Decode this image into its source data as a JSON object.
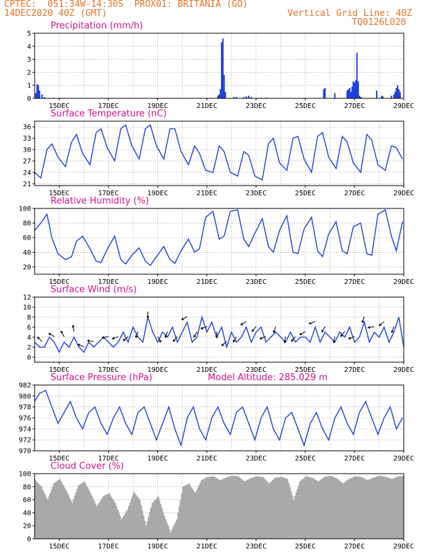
{
  "header": {
    "line1": "CPTEC:  051:34W-14:30S  PROX01: BRITANIA (GO)",
    "line2_left": "14DEC2020 40Z (GMT)",
    "line2_right": "Vertical Grid Line: 40Z",
    "line3_right": "TQ0126L028"
  },
  "colors": {
    "header": "#e8742a",
    "title": "#d4148c",
    "line": "#1f3fe0",
    "cloud": "#a9a9a9"
  },
  "chart_data": [
    {
      "type": "bar",
      "title": "Precipitation (mm/h)",
      "ylim": [
        0,
        5
      ],
      "yticks": [
        "0",
        "1",
        "2",
        "3",
        "4",
        "5"
      ],
      "xticks": [
        "15DEC",
        "17DEC",
        "19DEC",
        "21DEC",
        "23DEC",
        "25DEC",
        "27DEC",
        "29DEC"
      ],
      "x_day": [
        14.05,
        14.1,
        14.15,
        14.2,
        14.3,
        14.4,
        21.45,
        21.5,
        21.55,
        21.6,
        21.65,
        21.7,
        21.75,
        22.1,
        22.2,
        22.5,
        22.6,
        22.7,
        22.8,
        23.2,
        23.4,
        25.75,
        25.8,
        26.2,
        26.7,
        26.75,
        26.8,
        26.85,
        26.9,
        26.95,
        27.0,
        27.05,
        27.1,
        27.15,
        27.2,
        27.25,
        27.3,
        27.9,
        28.1,
        28.15,
        28.5,
        28.6,
        28.65,
        28.7,
        28.75,
        28.8,
        28.85
      ],
      "values": [
        0.4,
        1.1,
        1.0,
        0.6,
        0.3,
        0.1,
        0.2,
        0.3,
        0.7,
        4.3,
        4.6,
        1.8,
        0.5,
        0.1,
        0.1,
        0.1,
        0.15,
        0.2,
        0.1,
        0.05,
        0.05,
        0.7,
        0.8,
        0.4,
        0.6,
        0.7,
        0.8,
        0.5,
        0.9,
        1.3,
        1.2,
        1.4,
        3.5,
        1.3,
        0.2,
        0.1,
        0.05,
        0.6,
        0.2,
        0.15,
        0.2,
        0.3,
        0.5,
        0.8,
        1.0,
        0.7,
        0.5
      ]
    },
    {
      "type": "line",
      "title": "Surface Temperature (nC)",
      "ylim": [
        20.5,
        37.5
      ],
      "yticks": [
        "21",
        "24",
        "27",
        "30",
        "33",
        "36"
      ],
      "xticks": [
        "15DEC",
        "17DEC",
        "19DEC",
        "21DEC",
        "23DEC",
        "25DEC",
        "27DEC",
        "29DEC"
      ],
      "x_day": [
        14.0,
        14.25,
        14.5,
        14.7,
        14.95,
        15.25,
        15.5,
        15.7,
        15.95,
        16.25,
        16.5,
        16.7,
        16.95,
        17.25,
        17.5,
        17.7,
        17.95,
        18.25,
        18.5,
        18.7,
        18.95,
        19.25,
        19.5,
        19.7,
        19.95,
        20.25,
        20.5,
        20.7,
        20.95,
        21.25,
        21.5,
        21.7,
        21.95,
        22.25,
        22.5,
        22.7,
        22.95,
        23.25,
        23.5,
        23.7,
        23.95,
        24.25,
        24.5,
        24.7,
        24.95,
        25.25,
        25.5,
        25.7,
        25.95,
        26.25,
        26.5,
        26.7,
        26.95,
        27.25,
        27.5,
        27.7,
        27.95,
        28.25,
        28.5,
        28.7,
        28.95
      ],
      "values": [
        24.0,
        22.5,
        30.0,
        31.5,
        28.0,
        25.5,
        32.0,
        34.0,
        29.0,
        26.0,
        34.5,
        35.5,
        30.5,
        27.0,
        35.5,
        36.5,
        31.0,
        27.5,
        35.5,
        36.5,
        31.0,
        27.5,
        35.5,
        35.5,
        29.5,
        26.0,
        31.0,
        29.0,
        24.5,
        24.0,
        31.0,
        29.5,
        24.0,
        23.0,
        29.5,
        28.5,
        23.0,
        22.0,
        31.5,
        33.0,
        26.5,
        24.5,
        33.0,
        33.5,
        27.5,
        24.0,
        33.5,
        34.5,
        28.0,
        25.0,
        33.5,
        32.0,
        26.5,
        24.0,
        34.0,
        32.5,
        26.0,
        24.5,
        31.0,
        30.5,
        27.5
      ]
    },
    {
      "type": "line",
      "title": "Relative Humidity (%)",
      "ylim": [
        10,
        100
      ],
      "yticks": [
        "20",
        "40",
        "60",
        "80",
        "100"
      ],
      "xticks": [
        "15DEC",
        "17DEC",
        "19DEC",
        "21DEC",
        "23DEC",
        "25DEC",
        "27DEC",
        "29DEC"
      ],
      "x_day": [
        14.0,
        14.25,
        14.5,
        14.7,
        14.95,
        15.25,
        15.5,
        15.7,
        15.95,
        16.25,
        16.5,
        16.7,
        16.95,
        17.25,
        17.5,
        17.7,
        17.95,
        18.25,
        18.5,
        18.7,
        18.95,
        19.25,
        19.5,
        19.7,
        19.95,
        20.25,
        20.5,
        20.7,
        20.95,
        21.25,
        21.5,
        21.7,
        21.95,
        22.25,
        22.5,
        22.7,
        22.95,
        23.25,
        23.5,
        23.7,
        23.95,
        24.25,
        24.5,
        24.7,
        24.95,
        25.25,
        25.5,
        25.7,
        25.95,
        26.25,
        26.5,
        26.7,
        26.95,
        27.25,
        27.5,
        27.7,
        27.95,
        28.25,
        28.5,
        28.7,
        28.95
      ],
      "values": [
        70,
        80,
        92,
        60,
        38,
        30,
        34,
        55,
        62,
        45,
        28,
        26,
        44,
        62,
        30,
        24,
        36,
        46,
        28,
        22,
        34,
        48,
        30,
        25,
        42,
        58,
        40,
        45,
        88,
        96,
        58,
        62,
        96,
        98,
        58,
        48,
        66,
        86,
        48,
        40,
        70,
        90,
        40,
        38,
        72,
        88,
        42,
        34,
        65,
        82,
        42,
        38,
        75,
        80,
        38,
        36,
        92,
        98,
        62,
        42,
        82
      ]
    },
    {
      "type": "line",
      "title": "Surface Wind (m/s)",
      "ylim": [
        -1,
        12
      ],
      "yticks": [
        "0",
        "2",
        "4",
        "6",
        "8",
        "10",
        "12"
      ],
      "xticks": [
        "15DEC",
        "17DEC",
        "19DEC",
        "21DEC",
        "23DEC",
        "25DEC",
        "27DEC",
        "29DEC"
      ],
      "x_day": [
        14.0,
        14.2,
        14.4,
        14.6,
        14.8,
        15.0,
        15.2,
        15.4,
        15.6,
        15.8,
        16.0,
        16.2,
        16.4,
        16.6,
        16.8,
        17.0,
        17.2,
        17.4,
        17.6,
        17.8,
        18.0,
        18.2,
        18.4,
        18.6,
        18.8,
        19.0,
        19.2,
        19.4,
        19.6,
        19.8,
        20.0,
        20.2,
        20.4,
        20.6,
        20.8,
        21.0,
        21.2,
        21.4,
        21.6,
        21.8,
        22.0,
        22.2,
        22.4,
        22.6,
        22.8,
        23.0,
        23.2,
        23.4,
        23.6,
        23.8,
        24.0,
        24.2,
        24.4,
        24.6,
        24.8,
        25.0,
        25.2,
        25.4,
        25.6,
        25.8,
        26.0,
        26.2,
        26.4,
        26.6,
        26.8,
        27.0,
        27.2,
        27.4,
        27.6,
        27.8,
        28.0,
        28.2,
        28.4,
        28.6,
        28.8,
        29.0
      ],
      "values": [
        3,
        2,
        2,
        4,
        3,
        1,
        3,
        2,
        4,
        2,
        1,
        3,
        2,
        3,
        4,
        3,
        2,
        3,
        5,
        3,
        6,
        4,
        3,
        8,
        5,
        3,
        5,
        4,
        6,
        3,
        5,
        7,
        3,
        4,
        8,
        5,
        7,
        4,
        6,
        2,
        5,
        3,
        4,
        6,
        3,
        5,
        6,
        3,
        4,
        5,
        4,
        3,
        5,
        3,
        4,
        4,
        3,
        6,
        3,
        5,
        4,
        3,
        5,
        4,
        6,
        3,
        4,
        7,
        3,
        5,
        4,
        6,
        3,
        5,
        8,
        2
      ],
      "arrows_day": [
        14.3,
        14.8,
        15.2,
        15.6,
        16.0,
        16.4,
        17.0,
        17.4,
        17.8,
        18.2,
        18.6,
        19.0,
        19.4,
        19.8,
        20.2,
        20.6,
        21.0,
        21.4,
        21.8,
        22.2,
        22.6,
        23.0,
        23.4,
        23.8,
        24.2,
        24.6,
        25.0,
        25.4,
        25.8,
        26.2,
        26.6,
        27.0,
        27.4,
        27.8,
        28.2,
        28.6
      ],
      "arrows_dir_deg": [
        135,
        150,
        120,
        100,
        160,
        170,
        190,
        200,
        220,
        250,
        270,
        300,
        250,
        230,
        210,
        240,
        200,
        270,
        220,
        240,
        210,
        230,
        200,
        250,
        260,
        230,
        210,
        200,
        240,
        260,
        230,
        200,
        250,
        190,
        220,
        250
      ]
    },
    {
      "type": "line",
      "title": "Surface Pressure (hPa)",
      "annotation": "Model Altitude: 285.029 m",
      "ylim": [
        970,
        982
      ],
      "yticks": [
        "970",
        "972",
        "974",
        "976",
        "978",
        "980",
        "982"
      ],
      "xticks": [
        "15DEC",
        "17DEC",
        "19DEC",
        "21DEC",
        "23DEC",
        "25DEC",
        "27DEC",
        "29DEC"
      ],
      "x_day": [
        14.0,
        14.2,
        14.45,
        14.7,
        14.95,
        15.2,
        15.45,
        15.7,
        15.95,
        16.2,
        16.45,
        16.7,
        16.95,
        17.2,
        17.45,
        17.7,
        17.95,
        18.2,
        18.45,
        18.7,
        18.95,
        19.2,
        19.45,
        19.7,
        19.95,
        20.2,
        20.45,
        20.7,
        20.95,
        21.2,
        21.45,
        21.7,
        21.95,
        22.2,
        22.45,
        22.7,
        22.95,
        23.2,
        23.45,
        23.7,
        23.95,
        24.2,
        24.45,
        24.7,
        24.95,
        25.2,
        25.45,
        25.7,
        25.95,
        26.2,
        26.45,
        26.7,
        26.95,
        27.2,
        27.45,
        27.7,
        27.95,
        28.2,
        28.45,
        28.7,
        28.95
      ],
      "values": [
        979,
        980.5,
        981,
        978,
        975,
        977,
        979,
        976,
        974,
        977,
        978,
        975,
        973,
        976,
        978,
        975,
        973,
        977,
        978,
        975,
        972,
        975,
        978,
        974,
        971,
        976,
        978,
        974,
        972,
        976,
        978,
        975,
        973,
        977,
        978,
        975,
        972,
        976,
        978,
        974,
        972,
        976,
        977,
        974,
        971,
        975,
        977,
        974,
        972,
        976,
        978,
        975,
        973,
        977,
        979,
        976,
        973,
        976,
        978,
        974,
        976
      ]
    },
    {
      "type": "bar",
      "title": "Cloud Cover (%)",
      "ylim": [
        0,
        100
      ],
      "yticks": [
        "0",
        "20",
        "40",
        "60",
        "80",
        "100"
      ],
      "xticks": [
        "15DEC",
        "17DEC",
        "19DEC",
        "21DEC",
        "23DEC",
        "25DEC",
        "27DEC",
        "29DEC"
      ],
      "x_day": [
        14.0,
        14.25,
        14.5,
        14.75,
        15.0,
        15.25,
        15.5,
        15.75,
        16.0,
        16.25,
        16.5,
        16.75,
        17.0,
        17.25,
        17.5,
        17.75,
        18.0,
        18.25,
        18.5,
        18.75,
        19.0,
        19.25,
        19.5,
        19.75,
        20.0,
        20.25,
        20.5,
        20.75,
        21.0,
        21.25,
        21.5,
        21.75,
        22.0,
        22.25,
        22.5,
        22.75,
        23.0,
        23.25,
        23.5,
        23.75,
        24.0,
        24.25,
        24.5,
        24.75,
        25.0,
        25.25,
        25.5,
        25.75,
        26.0,
        26.25,
        26.5,
        26.75,
        27.0,
        27.25,
        27.5,
        27.75,
        28.0,
        28.25,
        28.5,
        28.75
      ],
      "values": [
        90,
        80,
        60,
        85,
        92,
        75,
        55,
        82,
        88,
        70,
        50,
        65,
        70,
        55,
        30,
        45,
        72,
        60,
        20,
        55,
        65,
        35,
        10,
        30,
        80,
        85,
        70,
        90,
        95,
        96,
        90,
        94,
        97,
        96,
        88,
        93,
        96,
        95,
        85,
        94,
        95,
        92,
        60,
        88,
        96,
        94,
        88,
        95,
        97,
        93,
        85,
        92,
        96,
        95,
        90,
        94,
        97,
        95,
        92,
        96
      ]
    }
  ]
}
